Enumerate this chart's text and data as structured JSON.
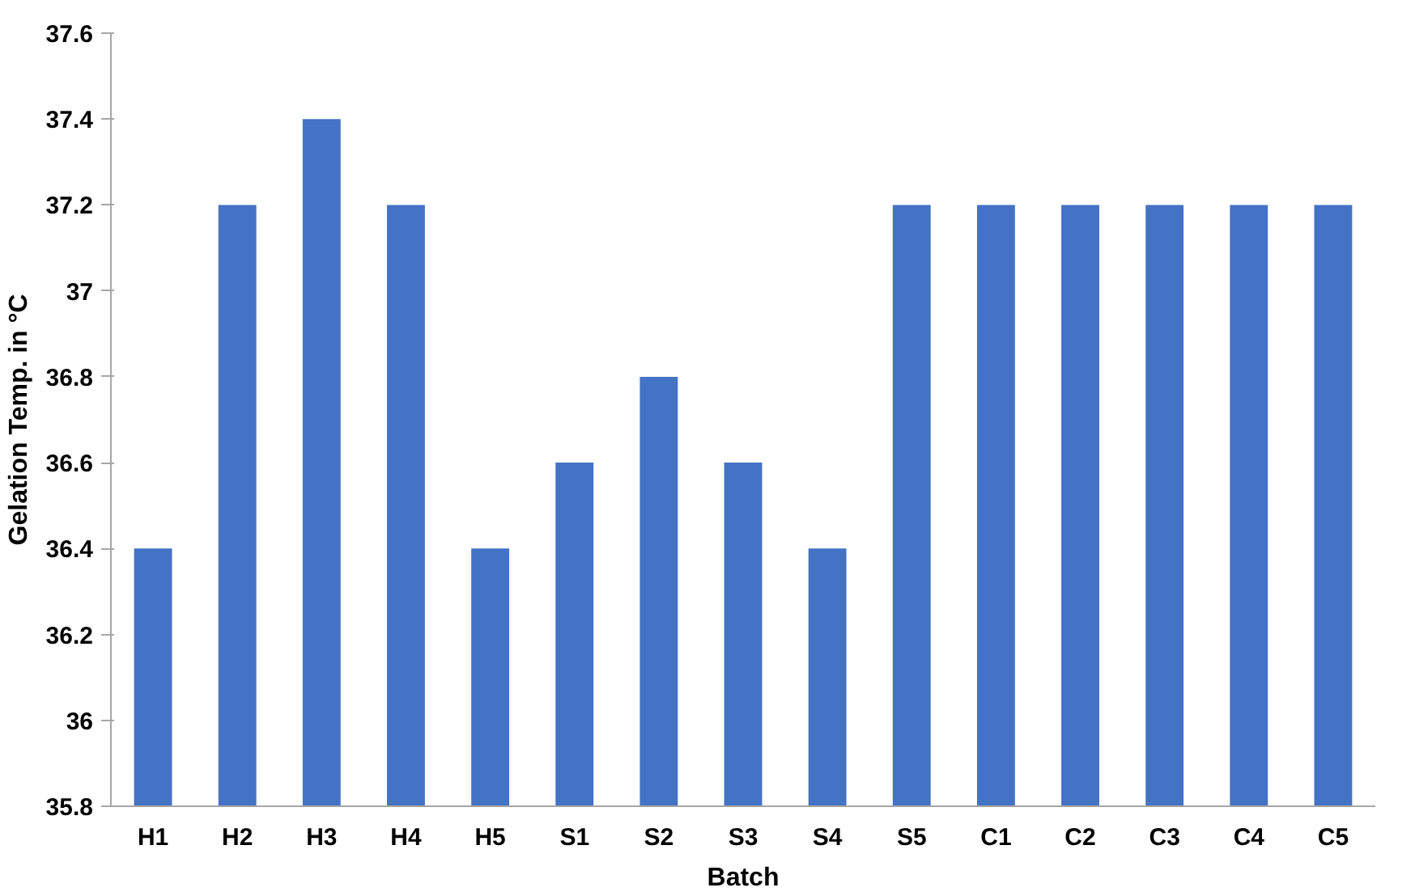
{
  "chart_data": {
    "type": "bar",
    "xlabel": "Batch",
    "ylabel": "Gelation Temp. in °C",
    "categories": [
      "H1",
      "H2",
      "H3",
      "H4",
      "H5",
      "S1",
      "S2",
      "S3",
      "S4",
      "S5",
      "C1",
      "C2",
      "C3",
      "C4",
      "C5"
    ],
    "values": [
      36.4,
      37.2,
      37.4,
      37.2,
      36.4,
      36.6,
      36.8,
      36.6,
      36.4,
      37.2,
      37.2,
      37.2,
      37.2,
      37.2,
      37.2
    ],
    "color": "#4472c4",
    "ylim": [
      35.8,
      37.6
    ],
    "yticks": [
      35.8,
      36,
      36.2,
      36.4,
      36.6,
      36.8,
      37,
      37.2,
      37.4,
      37.6
    ],
    "grid": false
  }
}
